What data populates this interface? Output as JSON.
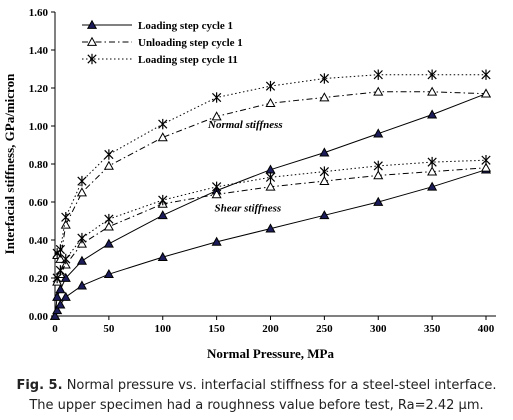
{
  "chart_data": {
    "type": "line",
    "xlabel": "Normal Pressure, MPa",
    "ylabel": "Interfacial stiffness, GPa/micron",
    "xlim": [
      0,
      400
    ],
    "ylim": [
      0,
      1.6
    ],
    "x_ticks": [
      "0",
      "50",
      "100",
      "150",
      "200",
      "250",
      "300",
      "350",
      "400"
    ],
    "y_ticks": [
      "0.00",
      "0.20",
      "0.40",
      "0.60",
      "0.80",
      "1.00",
      "1.20",
      "1.40",
      "1.60"
    ],
    "grid": false,
    "legend_position": "top-left",
    "series": [
      {
        "name": "Loading step cycle 1",
        "group": "Normal stiffness",
        "marker": "filled-triangle",
        "line_style": "solid",
        "x": [
          0,
          2,
          5,
          10,
          25,
          50,
          100,
          150,
          200,
          250,
          300,
          350,
          400
        ],
        "values": [
          0.0,
          0.1,
          0.14,
          0.2,
          0.29,
          0.38,
          0.53,
          0.66,
          0.77,
          0.86,
          0.96,
          1.06,
          1.17
        ]
      },
      {
        "name": "Unloading step cycle 1",
        "group": "Normal stiffness",
        "marker": "open-triangle",
        "line_style": "dash-dot",
        "x": [
          2,
          5,
          10,
          25,
          50,
          100,
          150,
          200,
          250,
          300,
          350,
          400
        ],
        "values": [
          0.32,
          0.3,
          0.48,
          0.65,
          0.79,
          0.94,
          1.05,
          1.12,
          1.15,
          1.18,
          1.18,
          1.17
        ]
      },
      {
        "name": "Loading step cycle 11",
        "group": "Normal stiffness",
        "marker": "star",
        "line_style": "dotted",
        "x": [
          2,
          5,
          10,
          25,
          50,
          100,
          150,
          200,
          250,
          300,
          350,
          400
        ],
        "values": [
          0.33,
          0.35,
          0.52,
          0.71,
          0.85,
          1.01,
          1.15,
          1.21,
          1.25,
          1.27,
          1.27,
          1.27
        ]
      },
      {
        "name": "Loading step cycle 1",
        "group": "Shear stiffness",
        "marker": "filled-triangle",
        "line_style": "solid",
        "x": [
          0,
          2,
          5,
          10,
          25,
          50,
          100,
          150,
          200,
          250,
          300,
          350,
          400
        ],
        "values": [
          0.0,
          0.03,
          0.06,
          0.1,
          0.16,
          0.22,
          0.31,
          0.39,
          0.46,
          0.53,
          0.6,
          0.68,
          0.77
        ]
      },
      {
        "name": "Unloading step cycle 1",
        "group": "Shear stiffness",
        "marker": "open-triangle",
        "line_style": "dash-dot",
        "x": [
          2,
          5,
          10,
          25,
          50,
          100,
          150,
          200,
          250,
          300,
          350,
          400
        ],
        "values": [
          0.18,
          0.22,
          0.27,
          0.38,
          0.47,
          0.59,
          0.64,
          0.68,
          0.71,
          0.74,
          0.76,
          0.78
        ]
      },
      {
        "name": "Loading step cycle 11",
        "group": "Shear stiffness",
        "marker": "star",
        "line_style": "dotted",
        "x": [
          2,
          5,
          10,
          25,
          50,
          100,
          150,
          200,
          250,
          300,
          350,
          400
        ],
        "values": [
          0.2,
          0.24,
          0.3,
          0.41,
          0.51,
          0.61,
          0.68,
          0.73,
          0.76,
          0.79,
          0.81,
          0.82
        ]
      }
    ],
    "legend": [
      {
        "label": "Loading step cycle 1",
        "marker": "filled-triangle",
        "line_style": "solid"
      },
      {
        "label": "Unloading step cycle 1",
        "marker": "open-triangle",
        "line_style": "dash-dot"
      },
      {
        "label": "Loading step cycle 11",
        "marker": "star",
        "line_style": "dotted"
      }
    ],
    "annotations": [
      "Normal stiffness",
      "Shear stiffness"
    ]
  },
  "caption": {
    "label": "Fig. 5.",
    "line1": "Normal pressure vs. interfacial stiffness for a steel-steel interface.",
    "line2": "The upper specimen had a roughness value before test, Ra=2.42 µm."
  },
  "colors": {
    "series_stroke": "#000000",
    "filled_marker": "#1c1c5a",
    "background": "#ffffff"
  }
}
